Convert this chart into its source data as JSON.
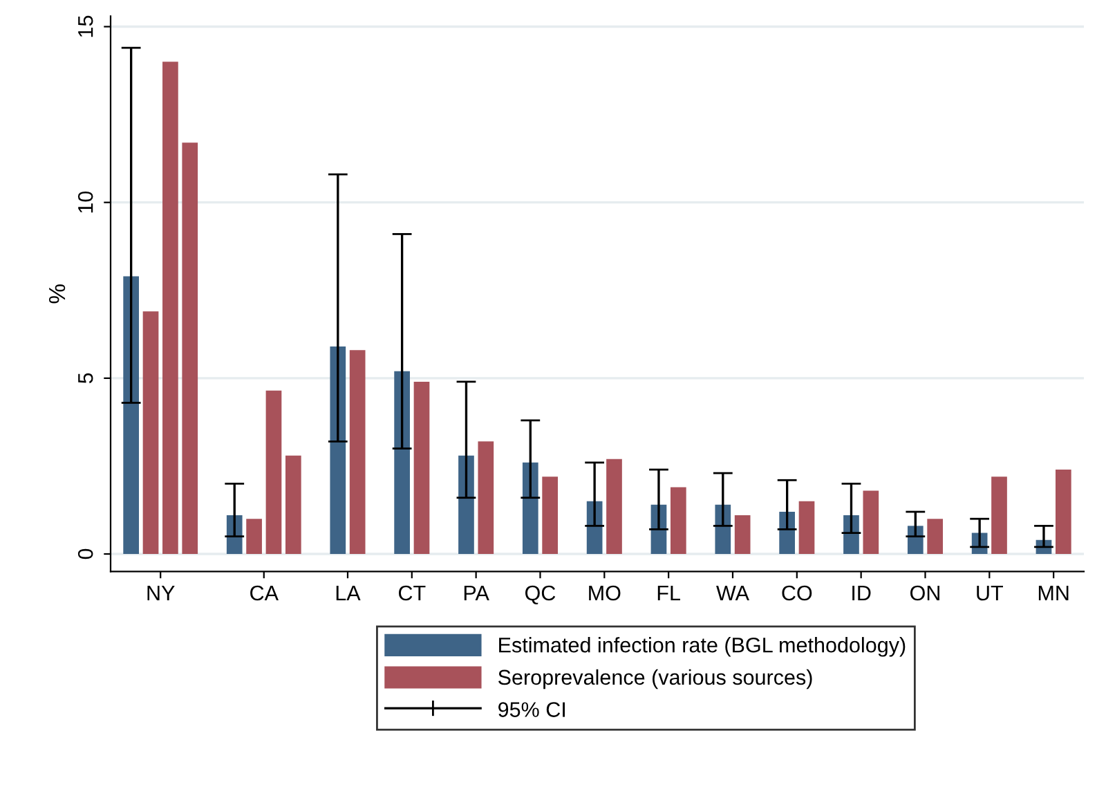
{
  "chart_data": {
    "type": "bar",
    "ylabel": "%",
    "categories": [
      "NY",
      "CA",
      "LA",
      "CT",
      "PA",
      "QC",
      "MO",
      "FL",
      "WA",
      "CO",
      "ID",
      "ON",
      "UT",
      "MN"
    ],
    "series": [
      {
        "name": "Estimated infection rate (BGL methodology)",
        "color": "#3e6487",
        "values": [
          7.9,
          1.1,
          5.9,
          5.2,
          2.8,
          2.6,
          1.5,
          1.4,
          1.4,
          1.2,
          1.1,
          0.8,
          0.6,
          0.4
        ],
        "errors": [
          [
            4.3,
            14.4
          ],
          [
            0.5,
            2.0
          ],
          [
            3.2,
            10.8
          ],
          [
            3.0,
            9.1
          ],
          [
            1.6,
            4.9
          ],
          [
            1.6,
            3.8
          ],
          [
            0.8,
            2.6
          ],
          [
            0.7,
            2.4
          ],
          [
            0.8,
            2.3
          ],
          [
            0.7,
            2.1
          ],
          [
            0.6,
            2.0
          ],
          [
            0.5,
            1.2
          ],
          [
            0.2,
            1.0
          ],
          [
            0.2,
            0.8
          ]
        ]
      },
      {
        "name": "Seroprevalence (various sources)",
        "color": "#a8525a",
        "values": [
          6.9,
          1.0,
          5.8,
          4.9,
          3.2,
          2.2,
          2.7,
          1.9,
          1.1,
          1.5,
          1.8,
          1.0,
          2.2,
          2.4
        ]
      },
      {
        "color": "#a8525a",
        "values": [
          14.0,
          4.65,
          null,
          null,
          null,
          null,
          null,
          null,
          null,
          null,
          null,
          null,
          null,
          null
        ]
      },
      {
        "color": "#a8525a",
        "values": [
          11.7,
          2.8,
          null,
          null,
          null,
          null,
          null,
          null,
          null,
          null,
          null,
          null,
          null,
          null
        ]
      }
    ],
    "annotations": [
      "95% CI"
    ],
    "ylim": [
      -0.5,
      15.3
    ],
    "yticks": [
      0,
      5,
      10,
      15
    ],
    "grid": "y",
    "legend": "bottom"
  }
}
